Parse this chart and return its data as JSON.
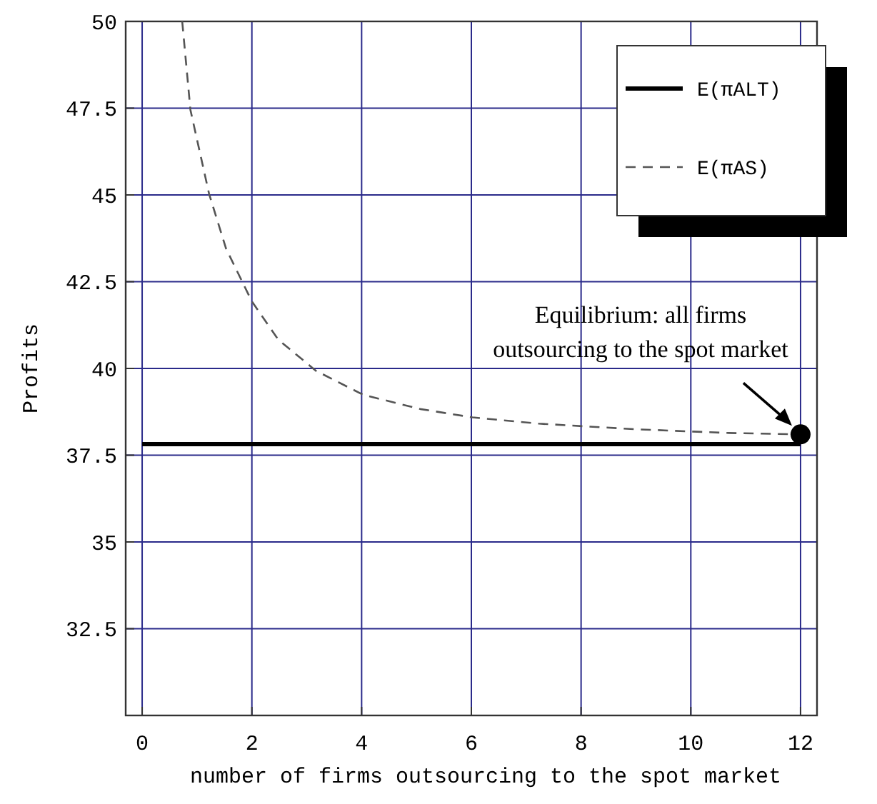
{
  "chart_data": {
    "type": "line",
    "xlabel": "number of firms outsourcing to the spot market",
    "ylabel": "Profits",
    "xlim": [
      -0.3,
      12.3
    ],
    "ylim": [
      30,
      50
    ],
    "xticks": [
      0,
      2,
      4,
      6,
      8,
      10,
      12
    ],
    "yticks": [
      32.5,
      35,
      37.5,
      40,
      42.5,
      45,
      47.5,
      50
    ],
    "grid": true,
    "legend": "top right",
    "marker": "none",
    "series": [
      {
        "name": "E(πALT)",
        "color": "#000000",
        "line_style": "solid",
        "x": [
          0,
          12
        ],
        "values": [
          37.82,
          37.82
        ]
      },
      {
        "name": "E(πAS)",
        "color": "#555555",
        "line_style": "dashed",
        "x": [
          0.73,
          0.88,
          1.22,
          1.53,
          2.0,
          2.48,
          3.17,
          4.03,
          5.07,
          6.02,
          7.23,
          8.96,
          10.69,
          12
        ],
        "values": [
          50,
          47.45,
          45.03,
          43.45,
          41.93,
          40.83,
          39.93,
          39.24,
          38.83,
          38.59,
          38.41,
          38.25,
          38.14,
          38.1
        ]
      },
      {
        "type": "scatter",
        "color": "#000000",
        "marker": "circle",
        "x": [
          12
        ],
        "values": [
          38.1
        ]
      }
    ],
    "annotations": [
      {
        "text": "Equilibrium: all firms outsourcing to the spot market",
        "x": 12,
        "y": 38.1
      }
    ]
  }
}
